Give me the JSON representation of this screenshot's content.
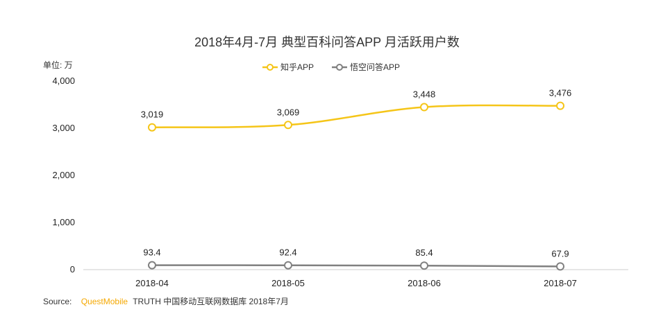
{
  "chart_data": {
    "type": "line",
    "title": "2018年4月-7月 典型百科问答APP 月活跃用户数",
    "unit_label": "单位: 万",
    "categories": [
      "2018-04",
      "2018-05",
      "2018-06",
      "2018-07"
    ],
    "ylim": [
      0,
      4000
    ],
    "yticks": [
      0,
      1000,
      2000,
      3000,
      4000
    ],
    "ytick_labels": [
      "0",
      "1,000",
      "2,000",
      "3,000",
      "4,000"
    ],
    "grid": false,
    "legend_position": "top-center",
    "series": [
      {
        "name": "知乎APP",
        "values": [
          3019,
          3069,
          3448,
          3476
        ],
        "labels": [
          "3,019",
          "3,069",
          "3,448",
          "3,476"
        ],
        "color": "#F5C518"
      },
      {
        "name": "悟空问答APP",
        "values": [
          93.4,
          92.4,
          85.4,
          67.9
        ],
        "labels": [
          "93.4",
          "92.4",
          "85.4",
          "67.9"
        ],
        "color": "#808080"
      }
    ]
  },
  "source": {
    "prefix": "Source:",
    "brand": "QuestMobile",
    "rest": "TRUTH 中国移动互联网数据库 2018年7月",
    "brand_color": "#F5A800"
  }
}
